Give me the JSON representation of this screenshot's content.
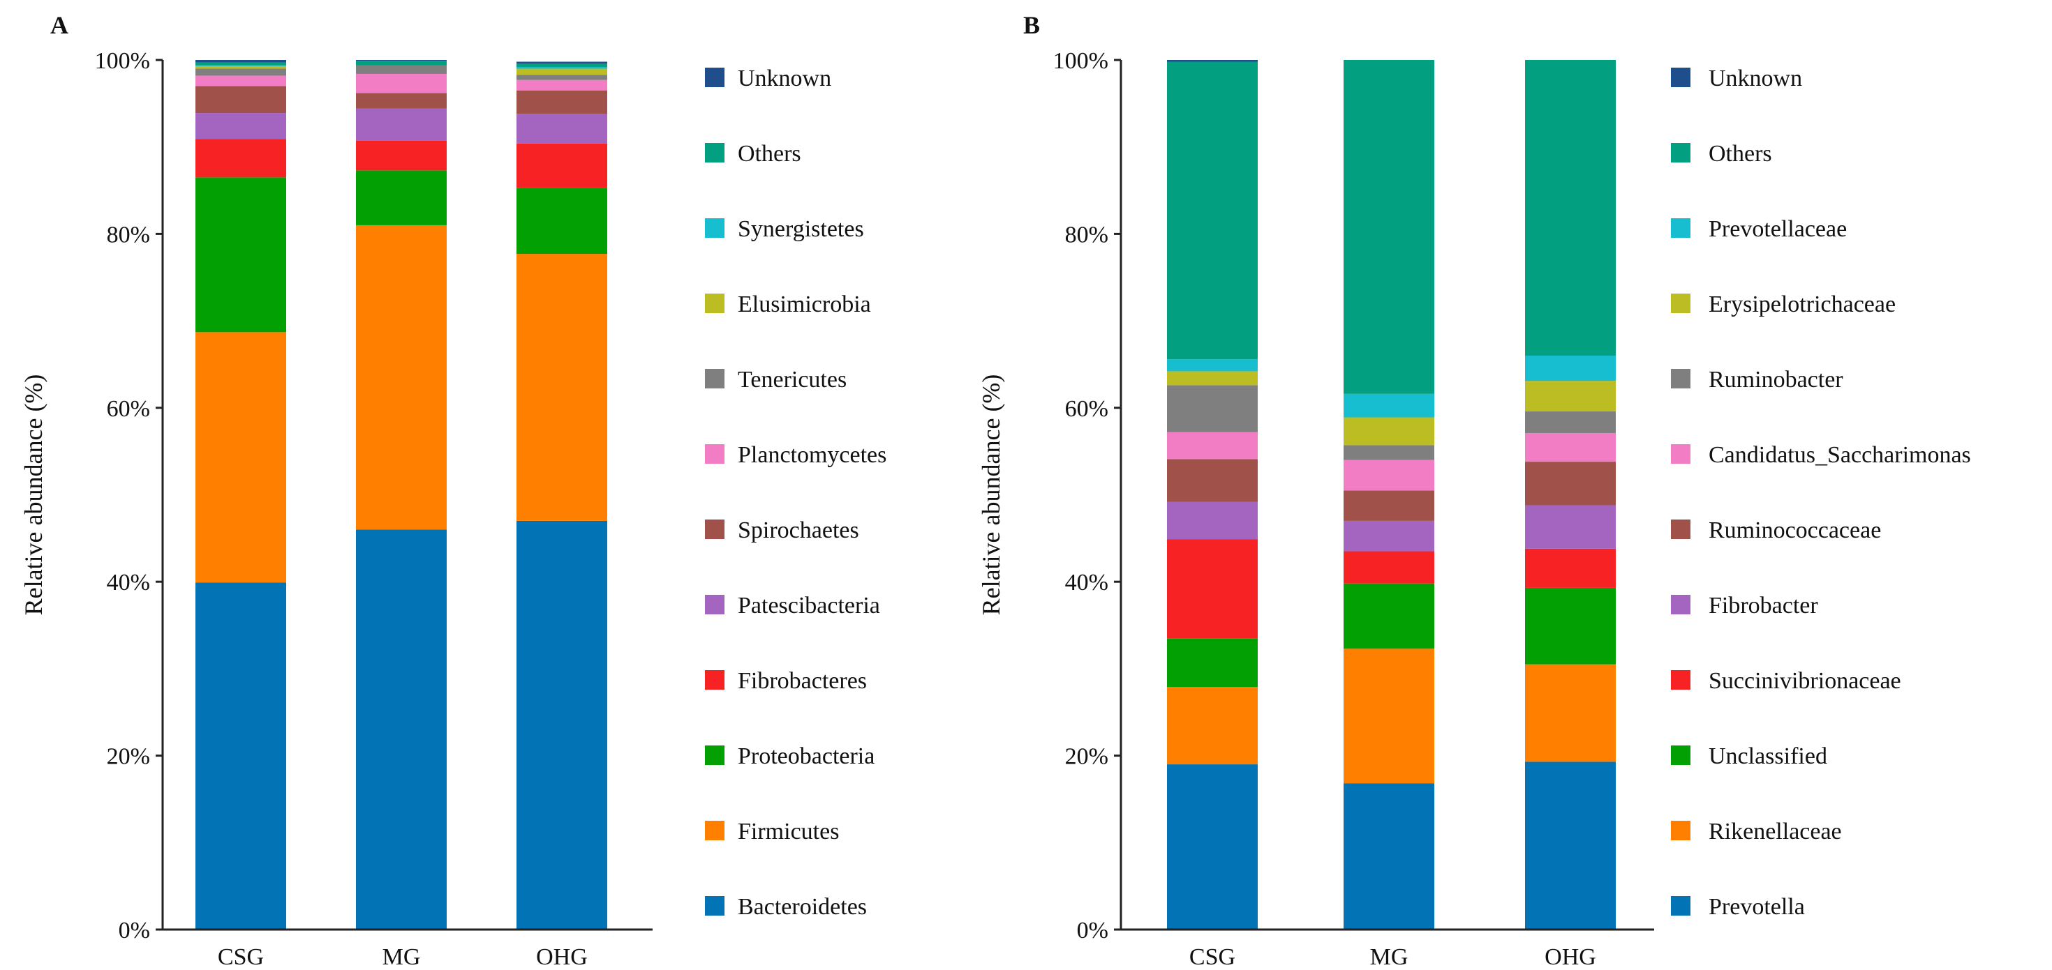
{
  "chart_data": [
    {
      "panel": "A",
      "type": "bar",
      "stacked": true,
      "ylabel": "Relative abundance (%)",
      "ylim": [
        0,
        100
      ],
      "yticks": [
        "0%",
        "20%",
        "40%",
        "60%",
        "80%",
        "100%"
      ],
      "categories": [
        "CSG",
        "MG",
        "OHG"
      ],
      "series": [
        {
          "name": "Bacteroidetes",
          "color": "#0273b4",
          "values": [
            39.9,
            46.0,
            47.0
          ]
        },
        {
          "name": "Firmicutes",
          "color": "#ff7f00",
          "values": [
            28.8,
            35.0,
            30.7
          ]
        },
        {
          "name": "Proteobacteria",
          "color": "#03a003",
          "values": [
            17.8,
            6.3,
            7.6
          ]
        },
        {
          "name": "Fibrobacteres",
          "color": "#f62223",
          "values": [
            4.4,
            3.4,
            5.1
          ]
        },
        {
          "name": "Patescibacteria",
          "color": "#a465c1",
          "values": [
            3.0,
            3.7,
            3.4
          ]
        },
        {
          "name": "Spirochaetes",
          "color": "#a0524a",
          "values": [
            3.1,
            1.8,
            2.7
          ]
        },
        {
          "name": "Planctomycetes",
          "color": "#f37dc4",
          "values": [
            1.2,
            2.2,
            1.2
          ]
        },
        {
          "name": "Tenericutes",
          "color": "#7f7f7f",
          "values": [
            0.8,
            1.0,
            0.6
          ]
        },
        {
          "name": "Elusimicrobia",
          "color": "#bcbd22",
          "values": [
            0.3,
            0.0,
            0.7
          ]
        },
        {
          "name": "Synergistetes",
          "color": "#17becf",
          "values": [
            0.1,
            0.0,
            0.2
          ]
        },
        {
          "name": "Others",
          "color": "#02a080",
          "values": [
            0.3,
            0.5,
            0.4
          ]
        },
        {
          "name": "Unknown",
          "color": "#1f4e8c",
          "values": [
            0.3,
            0.1,
            0.2
          ]
        }
      ],
      "legend": [
        "Unknown",
        "Others",
        "Synergistetes",
        "Elusimicrobia",
        "Tenericutes",
        "Planctomycetes",
        "Spirochaetes",
        "Patescibacteria",
        "Fibrobacteres",
        "Proteobacteria",
        "Firmicutes",
        "Bacteroidetes"
      ]
    },
    {
      "panel": "B",
      "type": "bar",
      "stacked": true,
      "ylabel": "Relative abundance (%)",
      "ylim": [
        0,
        100
      ],
      "yticks": [
        "0%",
        "20%",
        "40%",
        "60%",
        "80%",
        "100%"
      ],
      "categories": [
        "CSG",
        "MG",
        "OHG"
      ],
      "series": [
        {
          "name": "Prevotella",
          "color": "#0273b4",
          "values": [
            19.0,
            16.8,
            19.3
          ]
        },
        {
          "name": "Rikenellaceae",
          "color": "#ff7f00",
          "values": [
            8.9,
            15.5,
            11.2
          ]
        },
        {
          "name": "Unclassified",
          "color": "#03a003",
          "values": [
            5.6,
            7.5,
            8.8
          ]
        },
        {
          "name": "Succinivibrionaceae",
          "color": "#f62223",
          "values": [
            11.4,
            3.7,
            4.5
          ]
        },
        {
          "name": "Fibrobacter",
          "color": "#a465c1",
          "values": [
            4.3,
            3.5,
            5.0
          ]
        },
        {
          "name": "Ruminococcaceae",
          "color": "#a0524a",
          "values": [
            4.9,
            3.5,
            5.0
          ]
        },
        {
          "name": "Candidatus_Saccharimonas",
          "color": "#f37dc4",
          "values": [
            3.1,
            3.5,
            3.3
          ]
        },
        {
          "name": "Ruminobacter",
          "color": "#7f7f7f",
          "values": [
            5.4,
            1.7,
            2.5
          ]
        },
        {
          "name": "Erysipelotrichaceae",
          "color": "#bcbd22",
          "values": [
            1.6,
            3.2,
            3.5
          ]
        },
        {
          "name": "Prevotellaceae",
          "color": "#17becf",
          "values": [
            1.4,
            2.7,
            2.9
          ]
        },
        {
          "name": "Others",
          "color": "#02a080",
          "values": [
            34.2,
            38.4,
            34.0
          ]
        },
        {
          "name": "Unknown",
          "color": "#1f4e8c",
          "values": [
            0.2,
            0.0,
            0.0
          ]
        }
      ],
      "legend": [
        "Unknown",
        "Others",
        "Prevotellaceae",
        "Erysipelotrichaceae",
        "Ruminobacter",
        "Candidatus_Saccharimonas",
        "Ruminococcaceae",
        "Fibrobacter",
        "Succinivibrionaceae",
        "Unclassified",
        "Rikenellaceae",
        "Prevotella"
      ]
    }
  ]
}
